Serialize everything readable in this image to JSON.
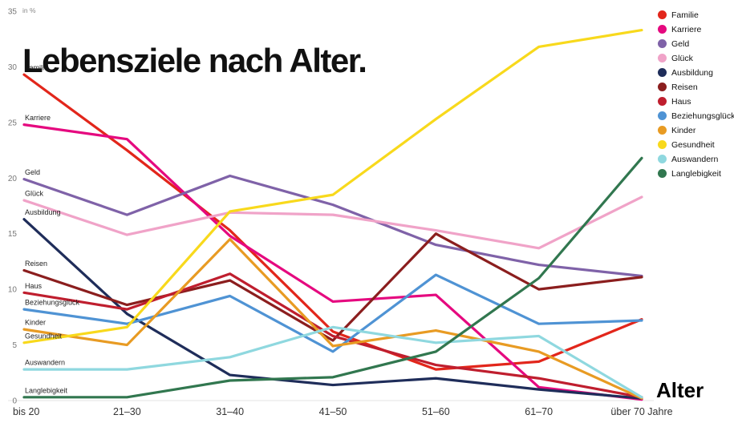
{
  "title": "Lebensziele nach Alter.",
  "y_axis_unit": "in %",
  "x_axis_label": "Alter",
  "chart_data": {
    "type": "line",
    "categories": [
      "bis 20",
      "21–30",
      "31–40",
      "41–50",
      "51–60",
      "61–70",
      "über 70 Jahre"
    ],
    "y_ticks": [
      0,
      5,
      10,
      15,
      20,
      25,
      30,
      35
    ],
    "ylim": [
      0,
      35
    ],
    "grid": false,
    "legend_position": "top-right",
    "series": [
      {
        "name": "Familie",
        "color": "#e2261b",
        "values": [
          29.3,
          22.5,
          15.3,
          6.2,
          2.8,
          3.5,
          7.3
        ]
      },
      {
        "name": "Karriere",
        "color": "#e5097f",
        "values": [
          24.8,
          23.5,
          14.8,
          8.9,
          9.5,
          1.2,
          0.1
        ]
      },
      {
        "name": "Geld",
        "color": "#7f62a8",
        "values": [
          19.9,
          16.7,
          20.2,
          17.6,
          14.0,
          12.2,
          11.2
        ]
      },
      {
        "name": "Glück",
        "color": "#f0a3c8",
        "values": [
          18.0,
          14.9,
          16.9,
          16.7,
          15.3,
          13.7,
          18.3
        ]
      },
      {
        "name": "Ausbildung",
        "color": "#1f2d5a",
        "values": [
          16.3,
          7.8,
          2.3,
          1.4,
          2.0,
          1.0,
          0.2
        ]
      },
      {
        "name": "Reisen",
        "color": "#8b1e1e",
        "values": [
          11.7,
          8.6,
          10.8,
          5.4,
          15.0,
          10.0,
          11.1
        ]
      },
      {
        "name": "Haus",
        "color": "#bf1e2e",
        "values": [
          9.7,
          8.2,
          11.4,
          5.8,
          3.2,
          2.0,
          0.3
        ]
      },
      {
        "name": "Beziehungsglück",
        "color": "#4f93d4",
        "values": [
          8.2,
          6.9,
          9.4,
          4.4,
          11.3,
          6.9,
          7.2
        ]
      },
      {
        "name": "Kinder",
        "color": "#e89b23",
        "values": [
          6.4,
          5.0,
          14.5,
          4.9,
          6.3,
          4.4,
          0.2
        ]
      },
      {
        "name": "Gesundheit",
        "color": "#f8d91c",
        "values": [
          5.2,
          6.6,
          17.0,
          18.5,
          25.3,
          31.8,
          33.3
        ]
      },
      {
        "name": "Auswandern",
        "color": "#8fd8df",
        "values": [
          2.8,
          2.8,
          3.9,
          6.6,
          5.2,
          5.8,
          0.3
        ]
      },
      {
        "name": "Langlebigkeit",
        "color": "#31774f",
        "values": [
          0.3,
          0.3,
          1.8,
          2.1,
          4.4,
          11.0,
          21.8
        ]
      }
    ]
  }
}
